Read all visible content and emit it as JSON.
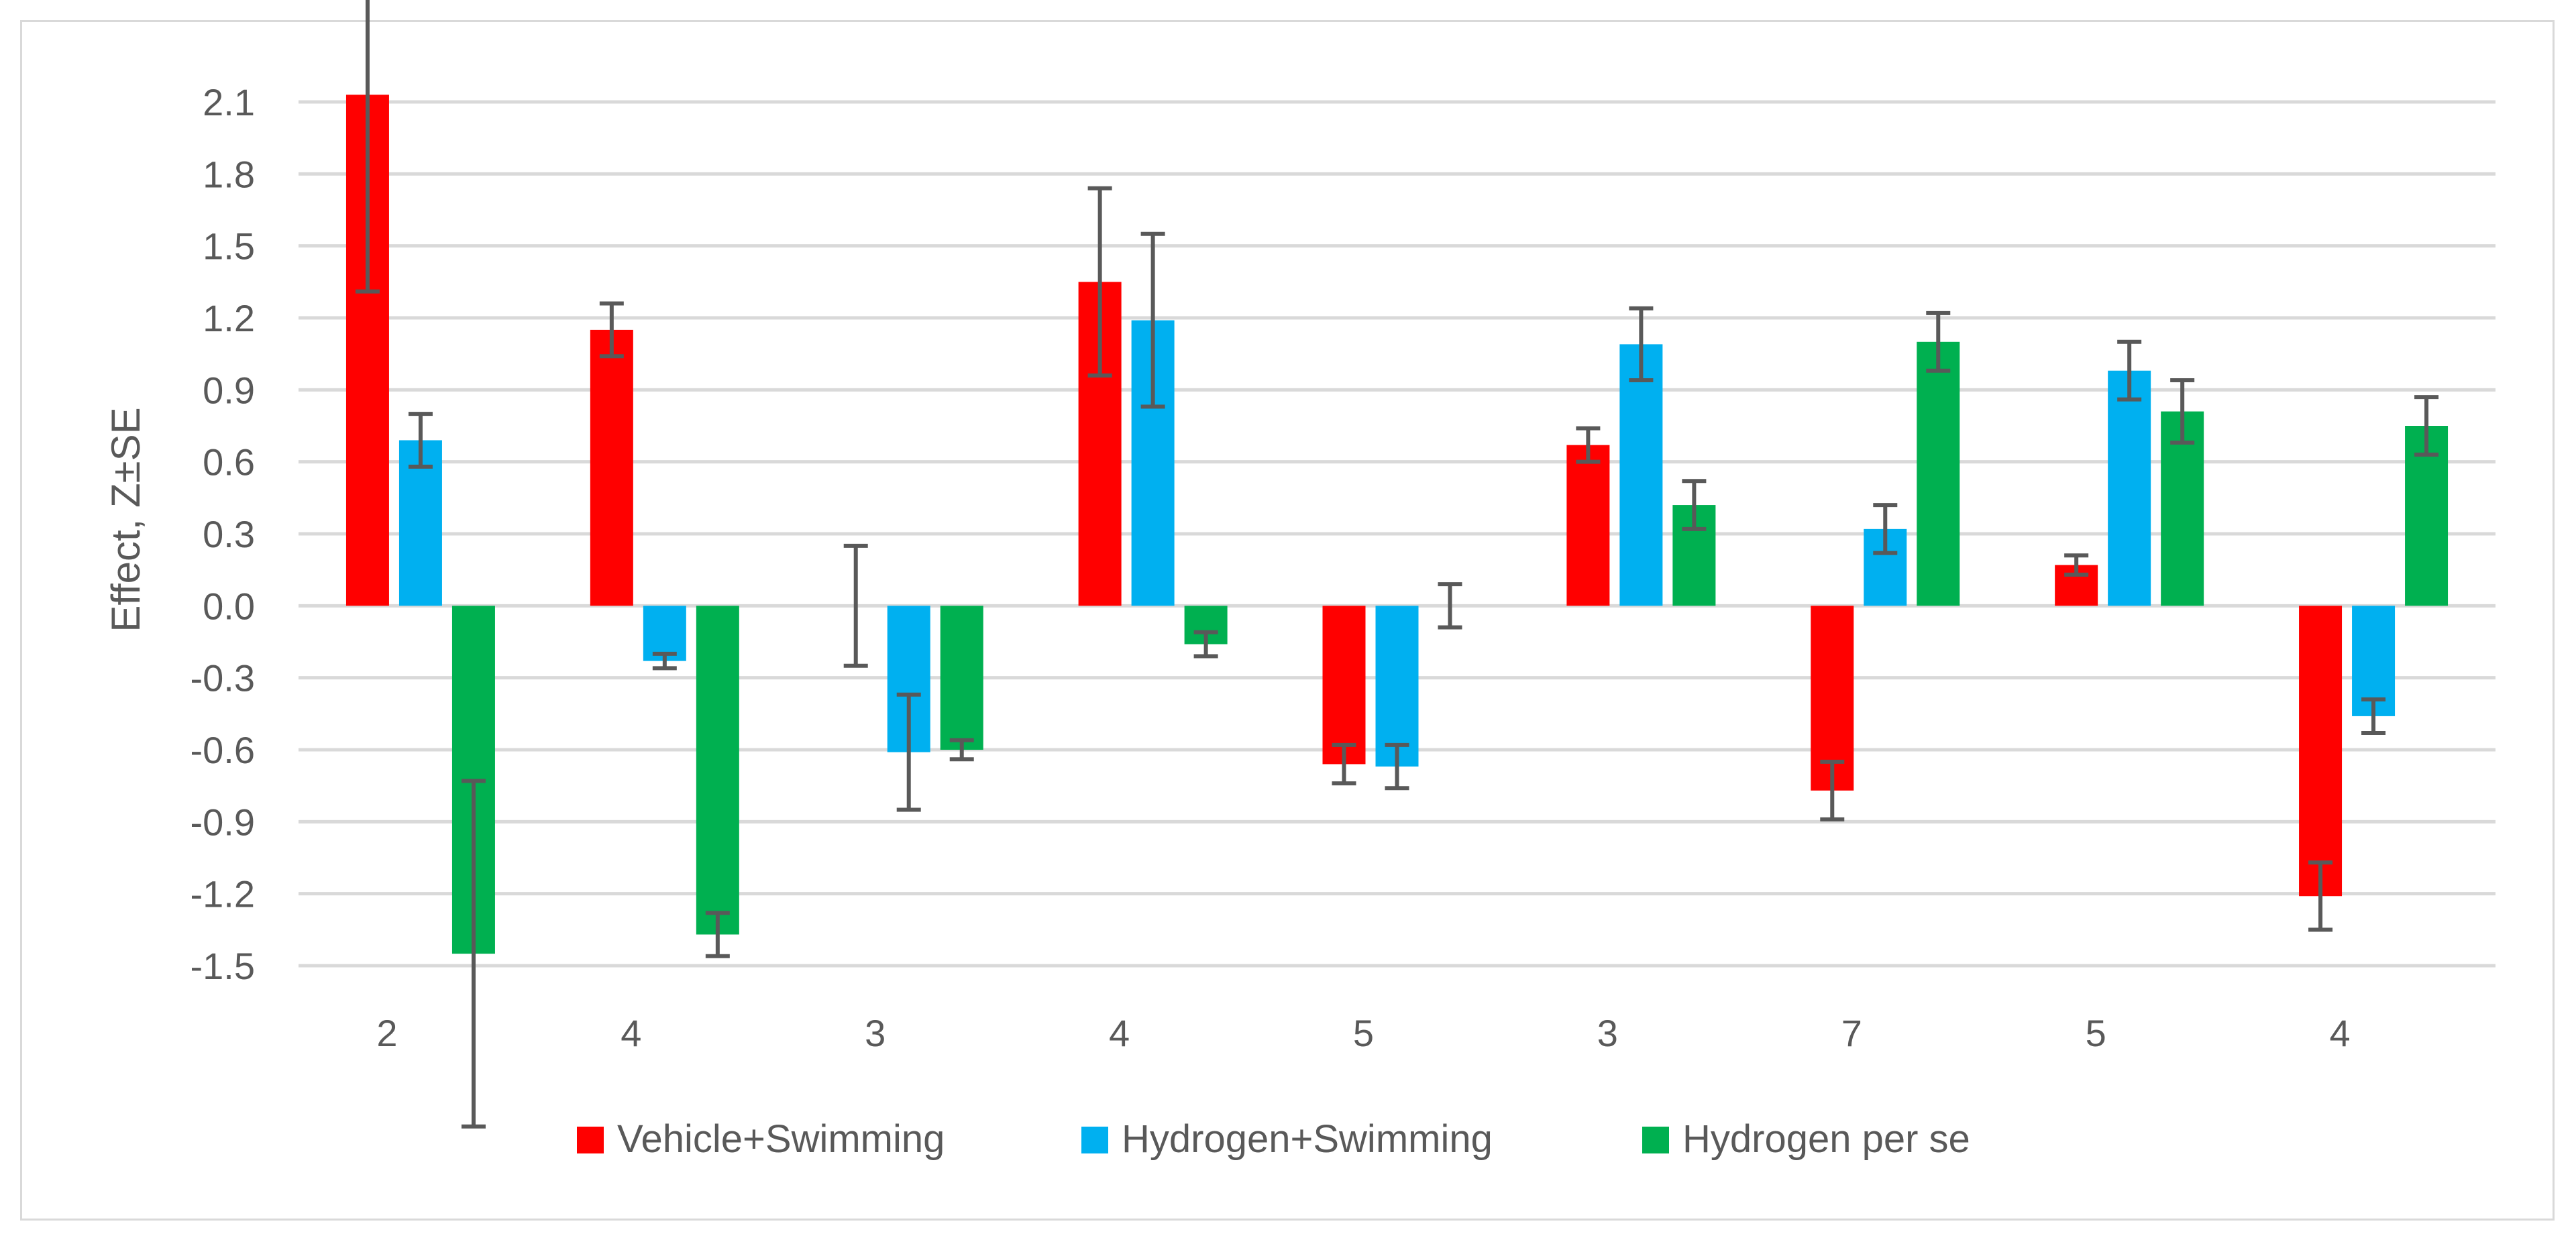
{
  "chart_data": {
    "type": "bar",
    "title": "",
    "xlabel": "",
    "ylabel": "Effect, Z±SE",
    "ylim": [
      -1.5,
      2.1
    ],
    "yticks": [
      "2.1",
      "1.8",
      "1.5",
      "1.2",
      "0.9",
      "0.6",
      "0.3",
      "0.0",
      "-0.3",
      "-0.6",
      "-0.9",
      "-1.2",
      "-1.5"
    ],
    "ytick_values": [
      2.1,
      1.8,
      1.5,
      1.2,
      0.9,
      0.6,
      0.3,
      0.0,
      -0.3,
      -0.6,
      -0.9,
      -1.2,
      -1.5
    ],
    "grid": true,
    "legend_position": "bottom",
    "categories": [
      "2",
      "4",
      "3",
      "4",
      "5",
      "3",
      "7",
      "5",
      "4"
    ],
    "series": [
      {
        "name": "Vehicle+Swimming",
        "color": "#ff0000",
        "values": [
          2.13,
          1.15,
          0.0,
          1.35,
          -0.66,
          0.67,
          -0.77,
          0.17,
          -1.21
        ],
        "errors": [
          0.82,
          0.11,
          0.25,
          0.39,
          0.08,
          0.07,
          0.12,
          0.04,
          0.14
        ]
      },
      {
        "name": "Hydrogen+Swimming",
        "color": "#00b0f0",
        "values": [
          0.69,
          -0.23,
          -0.61,
          1.19,
          -0.67,
          1.09,
          0.32,
          0.98,
          -0.46
        ],
        "errors": [
          0.11,
          0.03,
          0.24,
          0.36,
          0.09,
          0.15,
          0.1,
          0.12,
          0.07
        ]
      },
      {
        "name": "Hydrogen per se",
        "color": "#00b050",
        "values": [
          -1.45,
          -1.37,
          -0.6,
          -0.16,
          0.0,
          0.42,
          1.1,
          0.81,
          0.75
        ],
        "errors": [
          0.72,
          0.09,
          0.04,
          0.05,
          0.09,
          0.1,
          0.12,
          0.13,
          0.12
        ]
      }
    ]
  }
}
